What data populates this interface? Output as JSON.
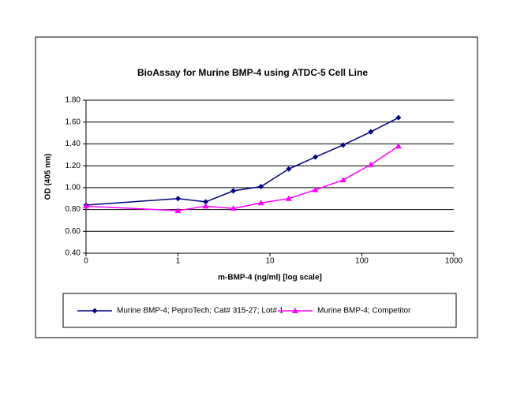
{
  "chart_data": {
    "type": "line",
    "title": "BioAssay for Murine BMP-4 using ATDC-5 Cell Line",
    "x_label": "m-BMP-4 (ng/ml) [log scale]",
    "y_label": "OD (405 nm)",
    "x": [
      0.1,
      1,
      2,
      4,
      8,
      16,
      31.25,
      62.5,
      125,
      250
    ],
    "series": [
      {
        "name": "Murine BMP-4; PeproTech; Cat# 315-27; Lot# 1",
        "color": "#000080",
        "marker": "diamond",
        "values": [
          0.84,
          0.9,
          0.87,
          0.97,
          1.01,
          1.17,
          1.28,
          1.39,
          1.51,
          1.64
        ]
      },
      {
        "name": "Murine BMP-4; Competitor",
        "color": "#ff00ff",
        "marker": "triangle",
        "values": [
          0.83,
          0.79,
          0.83,
          0.81,
          0.86,
          0.9,
          0.98,
          1.07,
          1.21,
          1.38
        ]
      }
    ],
    "x_log": true,
    "xlim": [
      0.1,
      1000
    ],
    "xticks": [
      {
        "value": 0.1,
        "label": "0"
      },
      1,
      10,
      100,
      1000
    ],
    "ylim": [
      0.4,
      1.8
    ],
    "yticks": [
      {
        "value": 0.4,
        "label": "0.40"
      },
      {
        "value": 0.6,
        "label": "0.60"
      },
      {
        "value": 0.8,
        "label": "0.80"
      },
      {
        "value": 1.0,
        "label": "1.00"
      },
      {
        "value": 1.2,
        "label": "1.20"
      },
      {
        "value": 1.4,
        "label": "1.40"
      },
      {
        "value": 1.6,
        "label": "1.60"
      },
      {
        "value": 1.8,
        "label": "1.80"
      }
    ],
    "grid": true,
    "legend": "bottom"
  }
}
